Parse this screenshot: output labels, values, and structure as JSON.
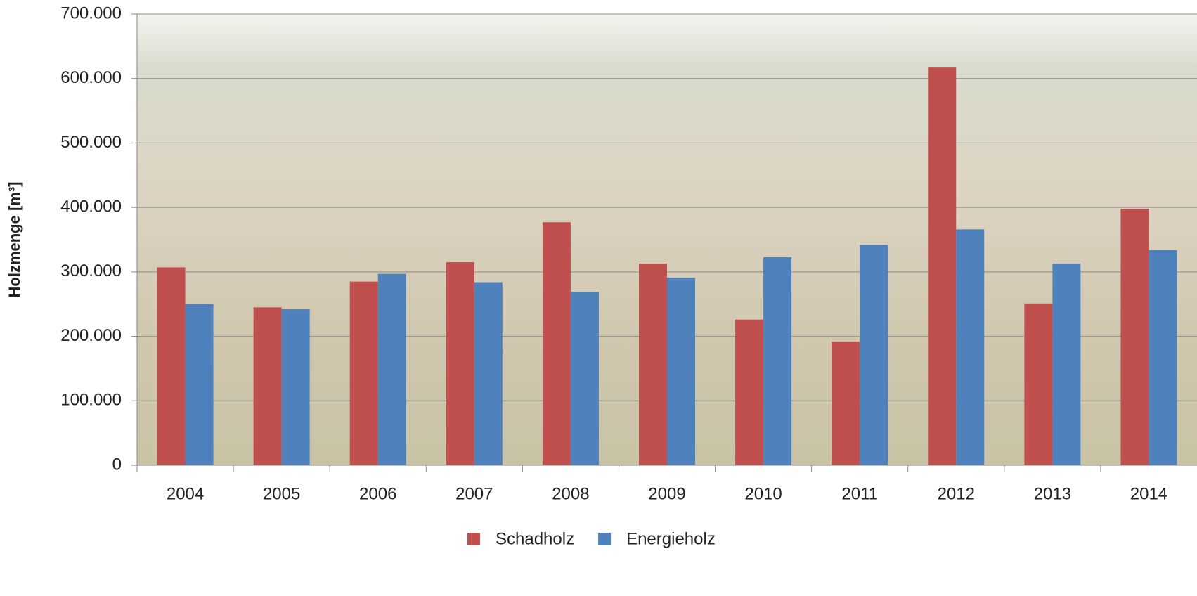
{
  "chart_data": {
    "type": "bar",
    "ylabel": "Holzmenge [m³]",
    "categories": [
      "2004",
      "2005",
      "2006",
      "2007",
      "2008",
      "2009",
      "2010",
      "2011",
      "2012",
      "2013",
      "2014"
    ],
    "series": [
      {
        "name": "Schadholz",
        "color": "#c0504d",
        "values": [
          307000,
          245000,
          285000,
          315000,
          377000,
          313000,
          226000,
          192000,
          617000,
          251000,
          398000
        ]
      },
      {
        "name": "Energieholz",
        "color": "#4f81bd",
        "values": [
          250000,
          242000,
          297000,
          284000,
          269000,
          291000,
          323000,
          342000,
          366000,
          313000,
          334000
        ]
      }
    ],
    "ylim": [
      0,
      700000
    ],
    "yticks": [
      0,
      {
        "value": 100000,
        "label": "100.000"
      },
      {
        "value": 200000,
        "label": "200.000"
      },
      {
        "value": 300000,
        "label": "300.000"
      },
      {
        "value": 400000,
        "label": "400.000"
      },
      {
        "value": 500000,
        "label": "500.000"
      },
      {
        "value": 600000,
        "label": "600.000"
      },
      {
        "value": 700000,
        "label": "700.000"
      }
    ],
    "grid": true,
    "legend": "bottom"
  }
}
